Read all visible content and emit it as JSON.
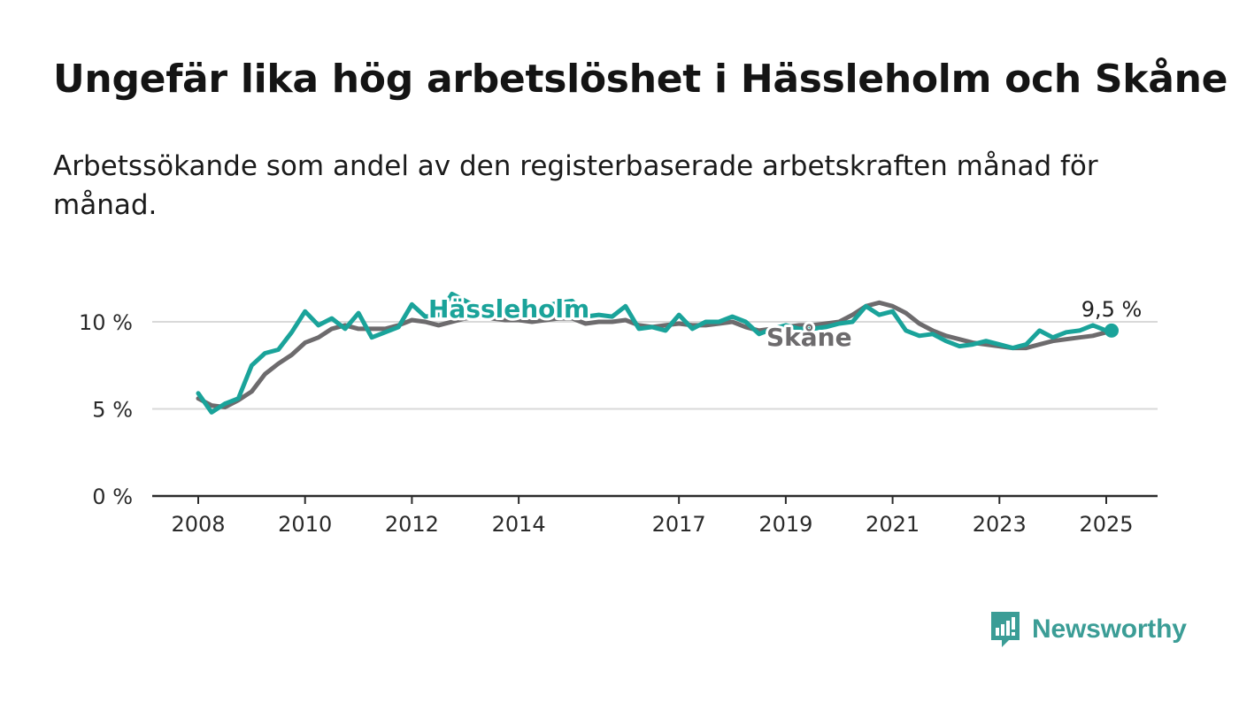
{
  "title": "Ungefär lika hög arbetslöshet i Hässleholm och Skåne",
  "subtitle": "Arbetssökande som andel av den registerbaserade arbetskraften månad för månad.",
  "brand": {
    "name": "Newsworthy",
    "color": "#3b9d96",
    "icon": "newsworthy-logo-icon"
  },
  "chart_data": {
    "type": "line",
    "title": "Ungefär lika hög arbetslöshet i Hässleholm och Skåne",
    "subtitle": "Arbetssökande som andel av den registerbaserade arbetskraften månad för månad.",
    "xlabel": "",
    "ylabel": "",
    "xlim": [
      2008,
      2025.25
    ],
    "ylim": [
      0,
      12
    ],
    "y_ticks": [
      0,
      5,
      10
    ],
    "y_tick_labels": [
      "0 %",
      "5 %",
      "10 %"
    ],
    "x_ticks": [
      2008,
      2010,
      2012,
      2014,
      2017,
      2019,
      2021,
      2023,
      2025
    ],
    "x_tick_labels": [
      "2008",
      "2010",
      "2012",
      "2014",
      "2017",
      "2019",
      "2021",
      "2023",
      "2025"
    ],
    "grid": "horizontal",
    "legend": "direct labels on lines",
    "end_label": "9,5 %",
    "series": [
      {
        "name": "Skåne",
        "color": "#6d6b6d",
        "points": [
          [
            2008.0,
            5.6
          ],
          [
            2008.25,
            5.2
          ],
          [
            2008.5,
            5.1
          ],
          [
            2008.75,
            5.5
          ],
          [
            2009.0,
            6.0
          ],
          [
            2009.25,
            7.0
          ],
          [
            2009.5,
            7.6
          ],
          [
            2009.75,
            8.1
          ],
          [
            2010.0,
            8.8
          ],
          [
            2010.25,
            9.1
          ],
          [
            2010.5,
            9.6
          ],
          [
            2010.75,
            9.8
          ],
          [
            2011.0,
            9.6
          ],
          [
            2011.25,
            9.6
          ],
          [
            2011.5,
            9.6
          ],
          [
            2011.75,
            9.8
          ],
          [
            2012.0,
            10.1
          ],
          [
            2012.25,
            10.0
          ],
          [
            2012.5,
            9.8
          ],
          [
            2012.75,
            10.0
          ],
          [
            2013.0,
            10.2
          ],
          [
            2013.25,
            10.3
          ],
          [
            2013.5,
            10.2
          ],
          [
            2013.75,
            10.1
          ],
          [
            2014.0,
            10.1
          ],
          [
            2014.25,
            10.0
          ],
          [
            2014.5,
            10.1
          ],
          [
            2014.75,
            10.2
          ],
          [
            2015.0,
            10.2
          ],
          [
            2015.25,
            9.9
          ],
          [
            2015.5,
            10.0
          ],
          [
            2015.75,
            10.0
          ],
          [
            2016.0,
            10.1
          ],
          [
            2016.25,
            9.8
          ],
          [
            2016.5,
            9.7
          ],
          [
            2016.75,
            9.8
          ],
          [
            2017.0,
            9.9
          ],
          [
            2017.25,
            9.8
          ],
          [
            2017.5,
            9.8
          ],
          [
            2017.75,
            9.9
          ],
          [
            2018.0,
            10.0
          ],
          [
            2018.25,
            9.7
          ],
          [
            2018.5,
            9.5
          ],
          [
            2018.75,
            9.6
          ],
          [
            2019.0,
            9.7
          ],
          [
            2019.25,
            9.8
          ],
          [
            2019.5,
            9.8
          ],
          [
            2019.75,
            9.9
          ],
          [
            2020.0,
            10.0
          ],
          [
            2020.25,
            10.4
          ],
          [
            2020.5,
            10.9
          ],
          [
            2020.75,
            11.1
          ],
          [
            2021.0,
            10.9
          ],
          [
            2021.25,
            10.5
          ],
          [
            2021.5,
            9.9
          ],
          [
            2021.75,
            9.5
          ],
          [
            2022.0,
            9.2
          ],
          [
            2022.25,
            9.0
          ],
          [
            2022.5,
            8.8
          ],
          [
            2022.75,
            8.7
          ],
          [
            2023.0,
            8.6
          ],
          [
            2023.25,
            8.5
          ],
          [
            2023.5,
            8.5
          ],
          [
            2023.75,
            8.7
          ],
          [
            2024.0,
            8.9
          ],
          [
            2024.25,
            9.0
          ],
          [
            2024.5,
            9.1
          ],
          [
            2024.75,
            9.2
          ],
          [
            2025.0,
            9.4
          ]
        ]
      },
      {
        "name": "Hässleholm",
        "color": "#1aa39a",
        "points": [
          [
            2008.0,
            5.9
          ],
          [
            2008.25,
            4.8
          ],
          [
            2008.5,
            5.3
          ],
          [
            2008.75,
            5.6
          ],
          [
            2009.0,
            7.5
          ],
          [
            2009.25,
            8.2
          ],
          [
            2009.5,
            8.4
          ],
          [
            2009.75,
            9.4
          ],
          [
            2010.0,
            10.6
          ],
          [
            2010.25,
            9.8
          ],
          [
            2010.5,
            10.2
          ],
          [
            2010.75,
            9.6
          ],
          [
            2011.0,
            10.5
          ],
          [
            2011.25,
            9.1
          ],
          [
            2011.5,
            9.4
          ],
          [
            2011.75,
            9.7
          ],
          [
            2012.0,
            11.0
          ],
          [
            2012.25,
            10.3
          ],
          [
            2012.5,
            10.4
          ],
          [
            2012.75,
            11.6
          ],
          [
            2013.0,
            11.2
          ],
          [
            2013.25,
            10.8
          ],
          [
            2013.5,
            10.7
          ],
          [
            2013.75,
            10.6
          ],
          [
            2014.0,
            10.5
          ],
          [
            2014.25,
            10.6
          ],
          [
            2014.5,
            10.9
          ],
          [
            2014.75,
            11.1
          ],
          [
            2015.0,
            11.2
          ],
          [
            2015.25,
            10.3
          ],
          [
            2015.5,
            10.4
          ],
          [
            2015.75,
            10.3
          ],
          [
            2016.0,
            10.9
          ],
          [
            2016.25,
            9.6
          ],
          [
            2016.5,
            9.7
          ],
          [
            2016.75,
            9.5
          ],
          [
            2017.0,
            10.4
          ],
          [
            2017.25,
            9.6
          ],
          [
            2017.5,
            10.0
          ],
          [
            2017.75,
            10.0
          ],
          [
            2018.0,
            10.3
          ],
          [
            2018.25,
            10.0
          ],
          [
            2018.5,
            9.3
          ],
          [
            2018.75,
            9.6
          ],
          [
            2019.0,
            9.8
          ],
          [
            2019.25,
            9.6
          ],
          [
            2019.5,
            9.6
          ],
          [
            2019.75,
            9.7
          ],
          [
            2020.0,
            9.9
          ],
          [
            2020.25,
            10.0
          ],
          [
            2020.5,
            10.9
          ],
          [
            2020.75,
            10.4
          ],
          [
            2021.0,
            10.6
          ],
          [
            2021.25,
            9.5
          ],
          [
            2021.5,
            9.2
          ],
          [
            2021.75,
            9.3
          ],
          [
            2022.0,
            8.9
          ],
          [
            2022.25,
            8.6
          ],
          [
            2022.5,
            8.7
          ],
          [
            2022.75,
            8.9
          ],
          [
            2023.0,
            8.7
          ],
          [
            2023.25,
            8.5
          ],
          [
            2023.5,
            8.7
          ],
          [
            2023.75,
            9.5
          ],
          [
            2024.0,
            9.1
          ],
          [
            2024.25,
            9.4
          ],
          [
            2024.5,
            9.5
          ],
          [
            2024.75,
            9.8
          ],
          [
            2025.0,
            9.5
          ]
        ]
      }
    ]
  }
}
